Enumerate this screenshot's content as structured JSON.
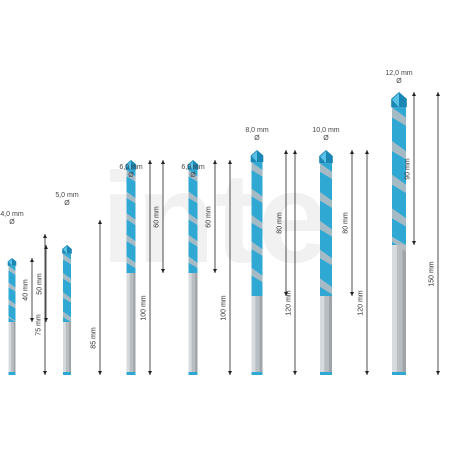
{
  "colors": {
    "accent": "#2fa8d4",
    "accent_dark": "#1a86b3",
    "shank": "#b9bec3",
    "shank_dark": "#8d9398",
    "dim_line": "#222222",
    "watermark": "#f1f1f1"
  },
  "watermark_text": "inte",
  "diameter_symbol": "Ø",
  "drills": [
    {
      "diameter": "4,0 mm",
      "flute": "40 mm",
      "total": "75 mm"
    },
    {
      "diameter": "5,0 mm",
      "flute": "50 mm",
      "total": "85 mm"
    },
    {
      "diameter": "6,0 mm",
      "flute": "60 mm",
      "total": "100 mm"
    },
    {
      "diameter": "6,0 mm",
      "flute": "60 mm",
      "total": "100 mm"
    },
    {
      "diameter": "8,0 mm",
      "flute": "80 mm",
      "total": "120 mm"
    },
    {
      "diameter": "10,0 mm",
      "flute": "80 mm",
      "total": "120 mm"
    },
    {
      "diameter": "12,0 mm",
      "flute": "90 mm",
      "total": "150 mm"
    }
  ]
}
